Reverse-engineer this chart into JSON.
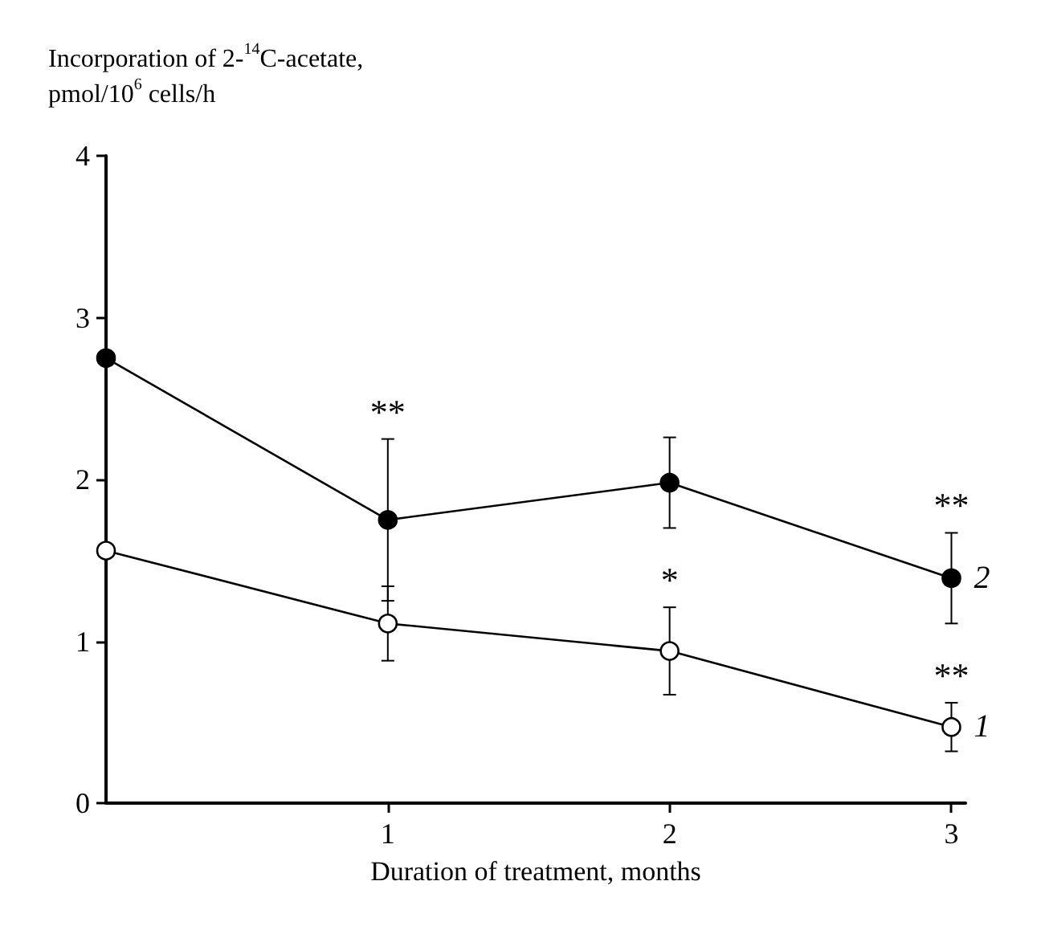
{
  "chart_data": {
    "type": "line",
    "ylabel": "Incorporation of 2-$^{14}$C-acetate,\npmol/10$^{6}$ cells/h",
    "xlabel": "Duration of treatment, months",
    "x": [
      0,
      1,
      2,
      3
    ],
    "series": [
      {
        "name": "1",
        "color": "#000000",
        "marker": "open circle",
        "values": [
          1.56,
          1.11,
          0.94,
          0.47
        ],
        "errors": [
          null,
          0.23,
          0.27,
          0.15
        ]
      },
      {
        "name": "2",
        "color": "#000000",
        "marker": "circle",
        "values": [
          2.75,
          1.75,
          1.98,
          1.39
        ],
        "errors": [
          null,
          0.5,
          0.28,
          0.28
        ]
      }
    ],
    "xlim": [
      0,
      3.05
    ],
    "xticks": [
      1,
      2,
      3
    ],
    "ylim": [
      0,
      4
    ],
    "yticks": [
      0,
      1,
      2,
      3,
      4
    ],
    "annotations": [
      {
        "text": "**",
        "x": 1,
        "y": 2.25
      },
      {
        "text": "*",
        "x": 2,
        "y": 1.21
      },
      {
        "text": "**",
        "x": 3,
        "y": 1.67
      },
      {
        "text": "**",
        "x": 3,
        "y": 0.62
      }
    ],
    "grid": false,
    "legend": false,
    "marker": "circle",
    "line_style": "solid"
  }
}
